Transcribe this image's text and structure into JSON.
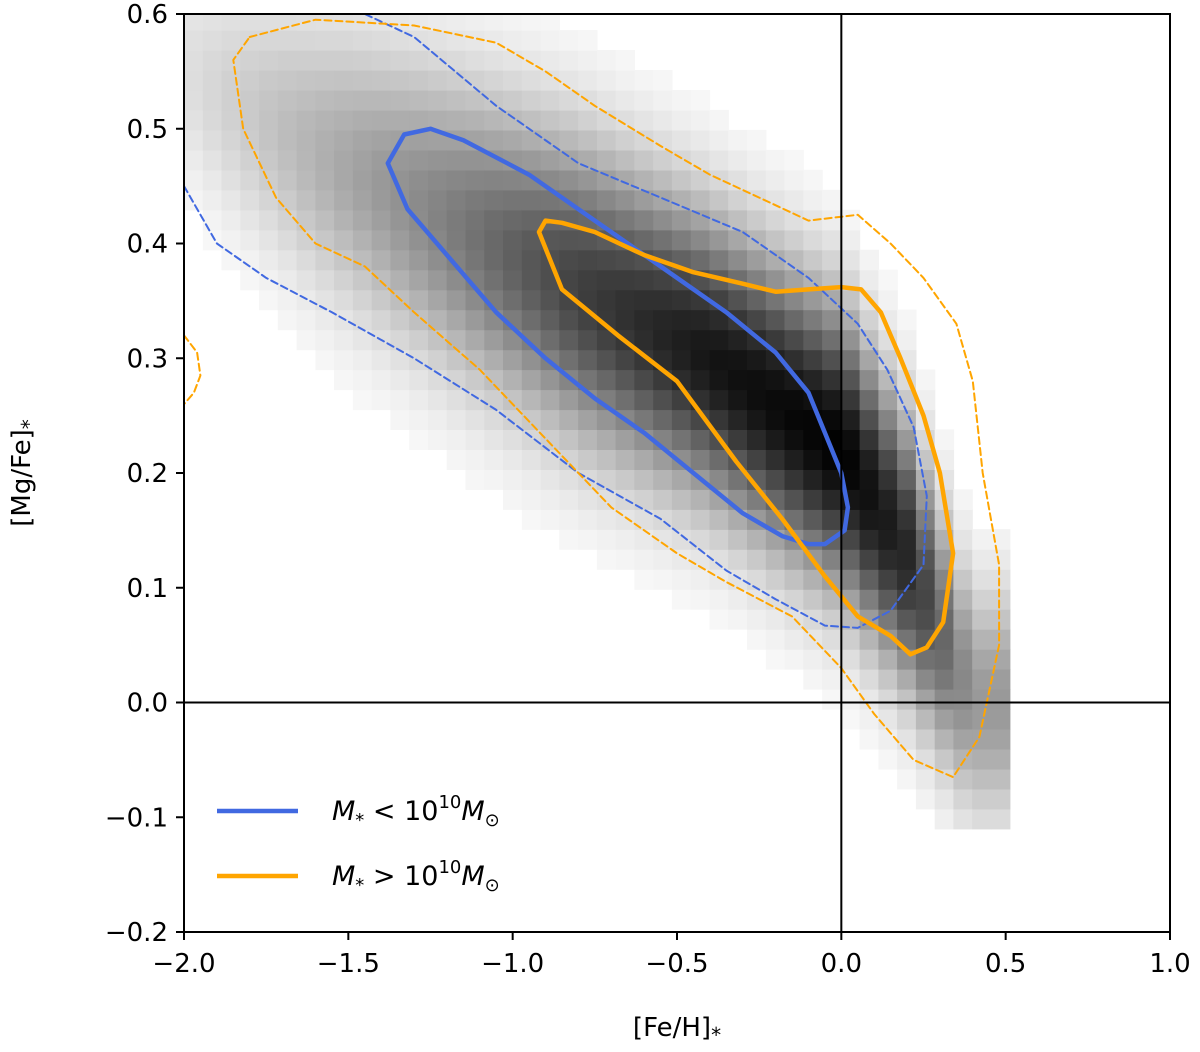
{
  "chart_data": {
    "type": "heatmap",
    "title": "",
    "xlabel": "[Fe/H]",
    "xlabel_sub": "*",
    "ylabel": "[Mg/Fe]",
    "ylabel_sub": "*",
    "xlim": [
      -2.0,
      1.0
    ],
    "ylim": [
      -0.2,
      0.6
    ],
    "xticks": [
      -2.0,
      -1.5,
      -1.0,
      -0.5,
      0.0,
      0.5,
      1.0
    ],
    "yticks": [
      -0.2,
      -0.1,
      0.0,
      0.1,
      0.2,
      0.3,
      0.4,
      0.5,
      0.6
    ],
    "xtick_labels": [
      "−2.0",
      "−1.5",
      "−1.0",
      "−0.5",
      "0.0",
      "0.5",
      "1.0"
    ],
    "ytick_labels": [
      "−0.2",
      "−0.1",
      "0.0",
      "0.1",
      "0.2",
      "0.3",
      "0.4",
      "0.5",
      "0.6"
    ],
    "reference_lines": {
      "x": 0.0,
      "y": 0.0
    },
    "legend_position": "lower-left",
    "density_ridge": [
      {
        "feh": -2.0,
        "mgfe": 0.55,
        "width": 0.07,
        "peak": 0.12
      },
      {
        "feh": -1.6,
        "mgfe": 0.48,
        "width": 0.085,
        "peak": 0.3
      },
      {
        "feh": -1.2,
        "mgfe": 0.42,
        "width": 0.09,
        "peak": 0.5
      },
      {
        "feh": -0.8,
        "mgfe": 0.36,
        "width": 0.09,
        "peak": 0.75
      },
      {
        "feh": -0.4,
        "mgfe": 0.3,
        "width": 0.085,
        "peak": 0.92
      },
      {
        "feh": 0.0,
        "mgfe": 0.22,
        "width": 0.085,
        "peak": 1.0
      },
      {
        "feh": 0.2,
        "mgfe": 0.13,
        "width": 0.08,
        "peak": 0.85
      },
      {
        "feh": 0.4,
        "mgfe": 0.0,
        "width": 0.07,
        "peak": 0.4
      }
    ],
    "series": [
      {
        "name": "M* < 10^10 Msun",
        "color": "#4169e1",
        "contours": [
          {
            "level": "inner",
            "style": "solid",
            "points": [
              [
                -1.38,
                0.47
              ],
              [
                -1.33,
                0.495
              ],
              [
                -1.25,
                0.5
              ],
              [
                -1.15,
                0.49
              ],
              [
                -0.95,
                0.46
              ],
              [
                -0.75,
                0.42
              ],
              [
                -0.55,
                0.38
              ],
              [
                -0.35,
                0.34
              ],
              [
                -0.2,
                0.305
              ],
              [
                -0.1,
                0.27
              ],
              [
                -0.05,
                0.235
              ],
              [
                0.0,
                0.2
              ],
              [
                0.02,
                0.17
              ],
              [
                0.01,
                0.15
              ],
              [
                -0.05,
                0.138
              ],
              [
                -0.1,
                0.138
              ],
              [
                -0.18,
                0.145
              ],
              [
                -0.3,
                0.165
              ],
              [
                -0.45,
                0.2
              ],
              [
                -0.6,
                0.235
              ],
              [
                -0.75,
                0.265
              ],
              [
                -0.9,
                0.3
              ],
              [
                -1.05,
                0.34
              ],
              [
                -1.2,
                0.39
              ],
              [
                -1.32,
                0.43
              ],
              [
                -1.38,
                0.47
              ]
            ]
          },
          {
            "level": "outer",
            "style": "dashed",
            "points": [
              [
                -2.0,
                0.45
              ],
              [
                -1.9,
                0.4
              ],
              [
                -1.75,
                0.37
              ],
              [
                -1.55,
                0.34
              ],
              [
                -1.3,
                0.3
              ],
              [
                -1.05,
                0.255
              ],
              [
                -0.8,
                0.2
              ],
              [
                -0.55,
                0.16
              ],
              [
                -0.35,
                0.115
              ],
              [
                -0.2,
                0.09
              ],
              [
                -0.05,
                0.067
              ],
              [
                0.05,
                0.065
              ],
              [
                0.15,
                0.08
              ],
              [
                0.25,
                0.12
              ],
              [
                0.26,
                0.18
              ],
              [
                0.22,
                0.24
              ],
              [
                0.14,
                0.29
              ],
              [
                0.05,
                0.33
              ],
              [
                -0.1,
                0.37
              ],
              [
                -0.3,
                0.41
              ],
              [
                -0.55,
                0.44
              ],
              [
                -0.8,
                0.47
              ],
              [
                -1.05,
                0.52
              ],
              [
                -1.3,
                0.58
              ],
              [
                -1.45,
                0.6
              ]
            ]
          }
        ]
      },
      {
        "name": "M* > 10^10 Msun",
        "color": "#ffa500",
        "contours": [
          {
            "level": "inner",
            "style": "solid",
            "points": [
              [
                -0.92,
                0.41
              ],
              [
                -0.9,
                0.42
              ],
              [
                -0.85,
                0.418
              ],
              [
                -0.75,
                0.41
              ],
              [
                -0.6,
                0.39
              ],
              [
                -0.45,
                0.375
              ],
              [
                -0.3,
                0.365
              ],
              [
                -0.2,
                0.358
              ],
              [
                -0.1,
                0.36
              ],
              [
                0.0,
                0.362
              ],
              [
                0.06,
                0.36
              ],
              [
                0.12,
                0.34
              ],
              [
                0.18,
                0.3
              ],
              [
                0.25,
                0.25
              ],
              [
                0.3,
                0.2
              ],
              [
                0.34,
                0.13
              ],
              [
                0.31,
                0.07
              ],
              [
                0.26,
                0.048
              ],
              [
                0.21,
                0.042
              ],
              [
                0.15,
                0.058
              ],
              [
                0.05,
                0.075
              ],
              [
                -0.05,
                0.11
              ],
              [
                -0.18,
                0.16
              ],
              [
                -0.32,
                0.21
              ],
              [
                -0.5,
                0.28
              ],
              [
                -0.68,
                0.32
              ],
              [
                -0.85,
                0.36
              ],
              [
                -0.92,
                0.41
              ]
            ]
          },
          {
            "level": "outer",
            "style": "dashed",
            "points": [
              [
                -1.8,
                0.58
              ],
              [
                -1.6,
                0.595
              ],
              [
                -1.3,
                0.59
              ],
              [
                -1.05,
                0.575
              ],
              [
                -0.9,
                0.55
              ],
              [
                -0.75,
                0.52
              ],
              [
                -0.55,
                0.485
              ],
              [
                -0.4,
                0.46
              ],
              [
                -0.25,
                0.44
              ],
              [
                -0.1,
                0.42
              ],
              [
                0.05,
                0.425
              ],
              [
                0.15,
                0.4
              ],
              [
                0.25,
                0.37
              ],
              [
                0.35,
                0.33
              ],
              [
                0.4,
                0.28
              ],
              [
                0.43,
                0.2
              ],
              [
                0.48,
                0.12
              ],
              [
                0.48,
                0.05
              ],
              [
                0.42,
                -0.03
              ],
              [
                0.34,
                -0.065
              ],
              [
                0.22,
                -0.05
              ],
              [
                0.1,
                -0.01
              ],
              [
                0.0,
                0.03
              ],
              [
                -0.15,
                0.075
              ],
              [
                -0.35,
                0.105
              ],
              [
                -0.5,
                0.13
              ],
              [
                -0.7,
                0.17
              ],
              [
                -0.9,
                0.23
              ],
              [
                -1.1,
                0.29
              ],
              [
                -1.3,
                0.34
              ],
              [
                -1.45,
                0.38
              ],
              [
                -1.6,
                0.4
              ],
              [
                -1.72,
                0.44
              ],
              [
                -1.82,
                0.5
              ],
              [
                -1.85,
                0.56
              ],
              [
                -1.8,
                0.58
              ]
            ]
          },
          {
            "level": "outer-fragment",
            "style": "dashed",
            "points": [
              [
                -2.0,
                0.32
              ],
              [
                -1.96,
                0.305
              ],
              [
                -1.95,
                0.285
              ],
              [
                -1.97,
                0.27
              ],
              [
                -2.0,
                0.26
              ]
            ]
          }
        ]
      }
    ]
  },
  "legend": {
    "entries": [
      {
        "color": "#4169e1",
        "symbol": "M",
        "symbol_sub": "*",
        "relation": " < 10",
        "exponent": "10",
        "unit": "M",
        "unit_sub": "⊙"
      },
      {
        "color": "#ffa500",
        "symbol": "M",
        "symbol_sub": "*",
        "relation": " > 10",
        "exponent": "10",
        "unit": "M",
        "unit_sub": "⊙"
      }
    ]
  }
}
